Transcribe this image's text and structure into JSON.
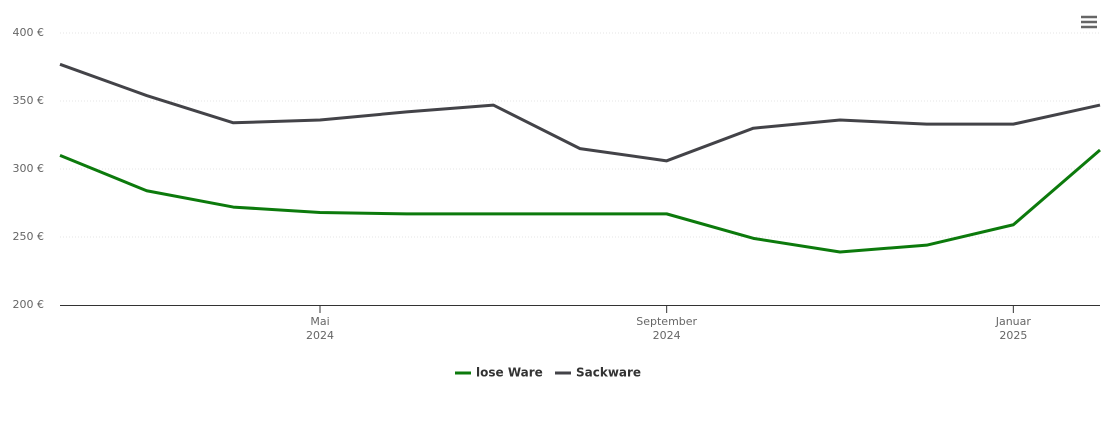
{
  "chart_data": {
    "type": "line",
    "x": [
      "2024-02",
      "2024-03",
      "2024-04",
      "2024-05",
      "2024-06",
      "2024-07",
      "2024-08",
      "2024-09",
      "2024-10",
      "2024-11",
      "2024-12",
      "2025-01",
      "2025-02"
    ],
    "xlim": [
      "2024-02",
      "2025-02"
    ],
    "xticks": [
      {
        "value": "2024-05",
        "label": "Mai 2024"
      },
      {
        "value": "2024-09",
        "label": "September 2024"
      },
      {
        "value": "2025-01",
        "label": "Januar 2025"
      }
    ],
    "ylim": [
      200,
      400
    ],
    "yticks": [
      {
        "value": 200,
        "label": "200 €"
      },
      {
        "value": 250,
        "label": "250 €"
      },
      {
        "value": 300,
        "label": "300 €"
      },
      {
        "value": 350,
        "label": "350 €"
      },
      {
        "value": 400,
        "label": "400 €"
      }
    ],
    "grid": true,
    "legend": "bottom",
    "series": [
      {
        "name": "lose Ware",
        "color": "#0c7a0c",
        "values": [
          310,
          284,
          272,
          268,
          267,
          267,
          267,
          267,
          249,
          239,
          244,
          259,
          314
        ]
      },
      {
        "name": "Sackware",
        "color": "#434348",
        "values": [
          377,
          354,
          334,
          336,
          342,
          347,
          315,
          306,
          330,
          336,
          333,
          333,
          347
        ]
      }
    ]
  }
}
